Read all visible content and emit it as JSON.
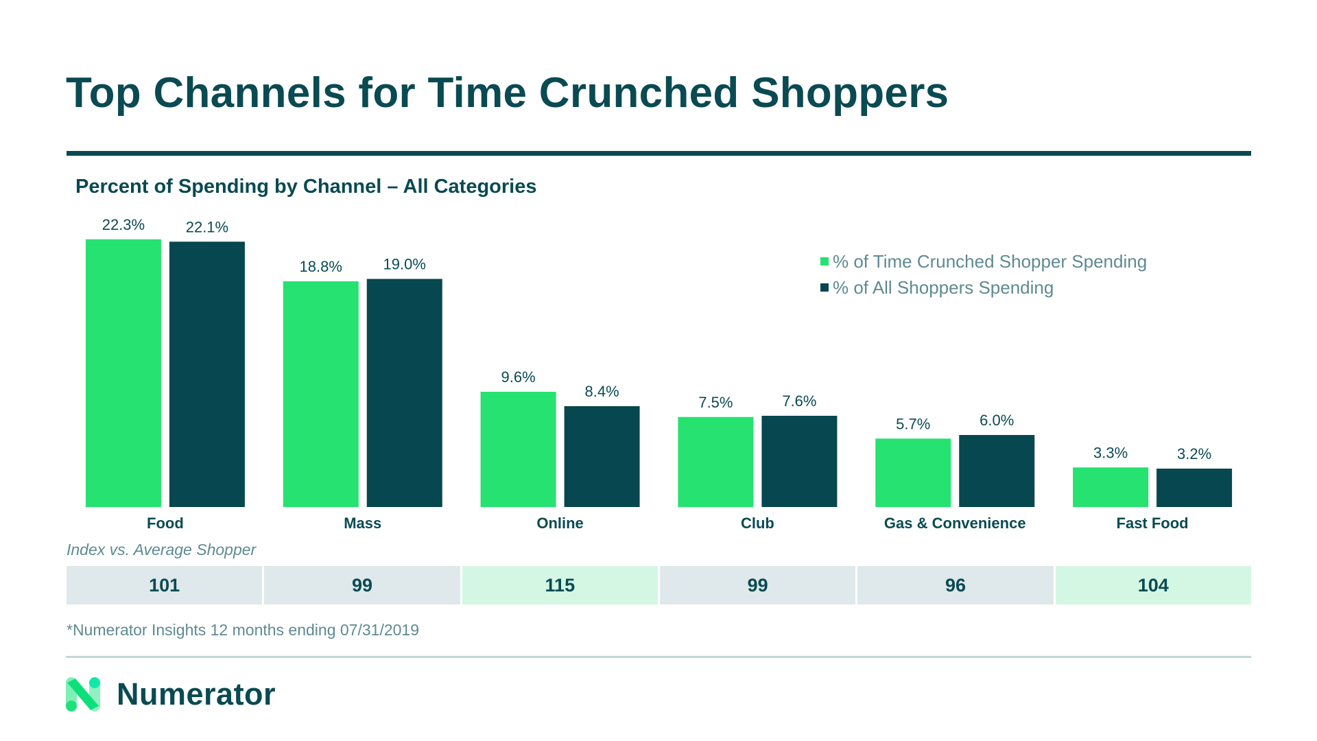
{
  "header": {
    "title": "Top Channels for Time Crunched Shoppers",
    "subtitle": "Percent of Spending by Channel – All Categories"
  },
  "colors": {
    "primary": "#0a4a52",
    "accent_green": "#26e270",
    "muted_text": "#5e8a90",
    "index_neutral": "#dfe8ea",
    "index_high": "#d3f7e3",
    "footer_rule": "#c5d6da"
  },
  "chart_data": {
    "type": "bar",
    "title": "Percent of Spending by Channel – All Categories",
    "xlabel": "",
    "ylabel": "",
    "ylim": [
      0,
      25
    ],
    "grid": false,
    "legend_position": "top-right",
    "categories": [
      "Food",
      "Mass",
      "Online",
      "Club",
      "Gas & Convenience",
      "Fast Food"
    ],
    "series": [
      {
        "name": "% of Time Crunched Shopper Spending",
        "color": "#26e270",
        "values": [
          22.3,
          18.8,
          9.6,
          7.5,
          5.7,
          3.3
        ],
        "labels": [
          "22.3%",
          "18.8%",
          "9.6%",
          "7.5%",
          "5.7%",
          "3.3%"
        ]
      },
      {
        "name": "% of All Shoppers Spending",
        "color": "#07474f",
        "values": [
          22.1,
          19.0,
          8.4,
          7.6,
          6.0,
          3.2
        ],
        "labels": [
          "22.1%",
          "19.0%",
          "8.4%",
          "7.6%",
          "6.0%",
          "3.2%"
        ]
      }
    ]
  },
  "legend": {
    "items": [
      {
        "label": "% of Time Crunched Shopper Spending",
        "color": "#26e270"
      },
      {
        "label": "% of All Shoppers Spending",
        "color": "#07474f"
      }
    ]
  },
  "index": {
    "label": "Index vs. Average Shopper",
    "cells": [
      {
        "value": "101",
        "highlight": false
      },
      {
        "value": "99",
        "highlight": false
      },
      {
        "value": "115",
        "highlight": true
      },
      {
        "value": "99",
        "highlight": false
      },
      {
        "value": "96",
        "highlight": false
      },
      {
        "value": "104",
        "highlight": true
      }
    ]
  },
  "footnote": "*Numerator Insights 12 months ending 07/31/2019",
  "brand": {
    "name": "Numerator",
    "logo_icon": "numerator-n-logo-icon"
  }
}
